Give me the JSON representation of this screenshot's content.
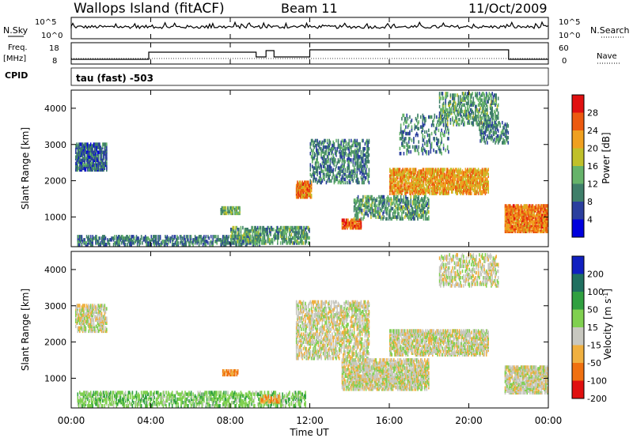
{
  "header": {
    "station": "Wallops Island (fitACF)",
    "beam": "Beam 11",
    "date": "11/Oct/2009"
  },
  "top_panels": {
    "nsky_label": "N.Sky",
    "nsearch_label": "N.Search",
    "freq_label_1": "Freq.",
    "freq_label_2": "[MHz]",
    "nave_label": "Nave",
    "cpid_label": "CPID",
    "cpid_value": "tau (fast) -503",
    "noise_ticks": [
      "10^5",
      "10^0"
    ],
    "noise_ticks_right": [
      "10^5",
      "10^0"
    ],
    "freq_ticks": [
      "18",
      "8"
    ],
    "nave_ticks": [
      "60",
      "0"
    ]
  },
  "chart_data": [
    {
      "type": "heatmap",
      "name": "power",
      "ylabel": "Slant Range [km]",
      "colorbar_label": "Power [dB]",
      "colorbar_ticks": [
        "4",
        "8",
        "12",
        "16",
        "20",
        "24",
        "28"
      ],
      "colorbar_colors": [
        "#0000dd",
        "#2b3f9e",
        "#3f7f6a",
        "#66b36a",
        "#c0c02a",
        "#f0a020",
        "#ec5a10",
        "#e01010"
      ],
      "ylim": [
        180,
        4500
      ],
      "yticks": [
        "1000",
        "2000",
        "3000",
        "4000"
      ],
      "xlim": [
        0,
        24
      ],
      "blobs": [
        {
          "t0": 0.2,
          "t1": 1.8,
          "r0": 2250,
          "r1": 3000,
          "v": 8,
          "d": 0.7
        },
        {
          "t0": 0.3,
          "t1": 9.5,
          "r0": 190,
          "r1": 450,
          "v": 9,
          "d": 0.5
        },
        {
          "t0": 7.5,
          "t1": 8.5,
          "r0": 1050,
          "r1": 1250,
          "v": 14,
          "d": 0.7
        },
        {
          "t0": 8.0,
          "t1": 12.0,
          "r0": 230,
          "r1": 700,
          "v": 12,
          "d": 0.5
        },
        {
          "t0": 11.3,
          "t1": 12.1,
          "r0": 1500,
          "r1": 1950,
          "v": 24,
          "d": 0.8
        },
        {
          "t0": 12.0,
          "t1": 15.0,
          "r0": 1900,
          "r1": 3100,
          "v": 10,
          "d": 0.35
        },
        {
          "t0": 13.6,
          "t1": 14.6,
          "r0": 650,
          "r1": 900,
          "v": 26,
          "d": 0.75
        },
        {
          "t0": 14.2,
          "t1": 18.0,
          "r0": 900,
          "r1": 1550,
          "v": 12,
          "d": 0.45
        },
        {
          "t0": 16.0,
          "t1": 21.0,
          "r0": 1600,
          "r1": 2300,
          "v": 22,
          "d": 0.65
        },
        {
          "t0": 16.5,
          "t1": 19.0,
          "r0": 2700,
          "r1": 3800,
          "v": 10,
          "d": 0.2
        },
        {
          "t0": 18.5,
          "t1": 21.5,
          "r0": 3500,
          "r1": 4400,
          "v": 12,
          "d": 0.35
        },
        {
          "t0": 21.8,
          "t1": 24.0,
          "r0": 550,
          "r1": 1300,
          "v": 24,
          "d": 0.75
        },
        {
          "t0": 20.5,
          "t1": 22.0,
          "r0": 3000,
          "r1": 3600,
          "v": 10,
          "d": 0.3
        }
      ]
    },
    {
      "type": "heatmap",
      "name": "velocity",
      "ylabel": "Slant Range [km]",
      "colorbar_label": "Velocity [m s^-1]",
      "colorbar_ticks": [
        "200",
        "100",
        "50",
        "15",
        "-15",
        "-50",
        "-100",
        "-200"
      ],
      "colorbar_colors": [
        "#1020c0",
        "#207060",
        "#30a040",
        "#80d050",
        "#c8c8c0",
        "#f0b040",
        "#f07010",
        "#e01010"
      ],
      "ylim": [
        180,
        4500
      ],
      "yticks": [
        "1000",
        "2000",
        "3000",
        "4000"
      ],
      "xlim": [
        0,
        24
      ],
      "xlabel": "Time UT",
      "xticks": [
        "00:00",
        "04:00",
        "08:00",
        "12:00",
        "16:00",
        "20:00",
        "00:00"
      ],
      "blobs": [
        {
          "t0": 0.2,
          "t1": 1.8,
          "r0": 2250,
          "r1": 3000,
          "v": 0,
          "d": 0.55
        },
        {
          "t0": 0.3,
          "t1": 11.8,
          "r0": 190,
          "r1": 600,
          "v": 35,
          "d": 0.45
        },
        {
          "t0": 7.6,
          "t1": 8.4,
          "r0": 1050,
          "r1": 1200,
          "v": -60,
          "d": 0.7
        },
        {
          "t0": 9.5,
          "t1": 10.5,
          "r0": 300,
          "r1": 500,
          "v": -40,
          "d": 0.6
        },
        {
          "t0": 11.3,
          "t1": 15.0,
          "r0": 1500,
          "r1": 3100,
          "v": 0,
          "d": 0.45
        },
        {
          "t0": 13.6,
          "t1": 18.0,
          "r0": 650,
          "r1": 1500,
          "v": 0,
          "d": 0.65
        },
        {
          "t0": 16.0,
          "t1": 21.0,
          "r0": 1600,
          "r1": 2300,
          "v": 0,
          "d": 0.6
        },
        {
          "t0": 18.5,
          "t1": 21.5,
          "r0": 3500,
          "r1": 4400,
          "v": 0,
          "d": 0.35
        },
        {
          "t0": 21.8,
          "t1": 24.0,
          "r0": 550,
          "r1": 1300,
          "v": 0,
          "d": 0.7
        }
      ]
    }
  ]
}
